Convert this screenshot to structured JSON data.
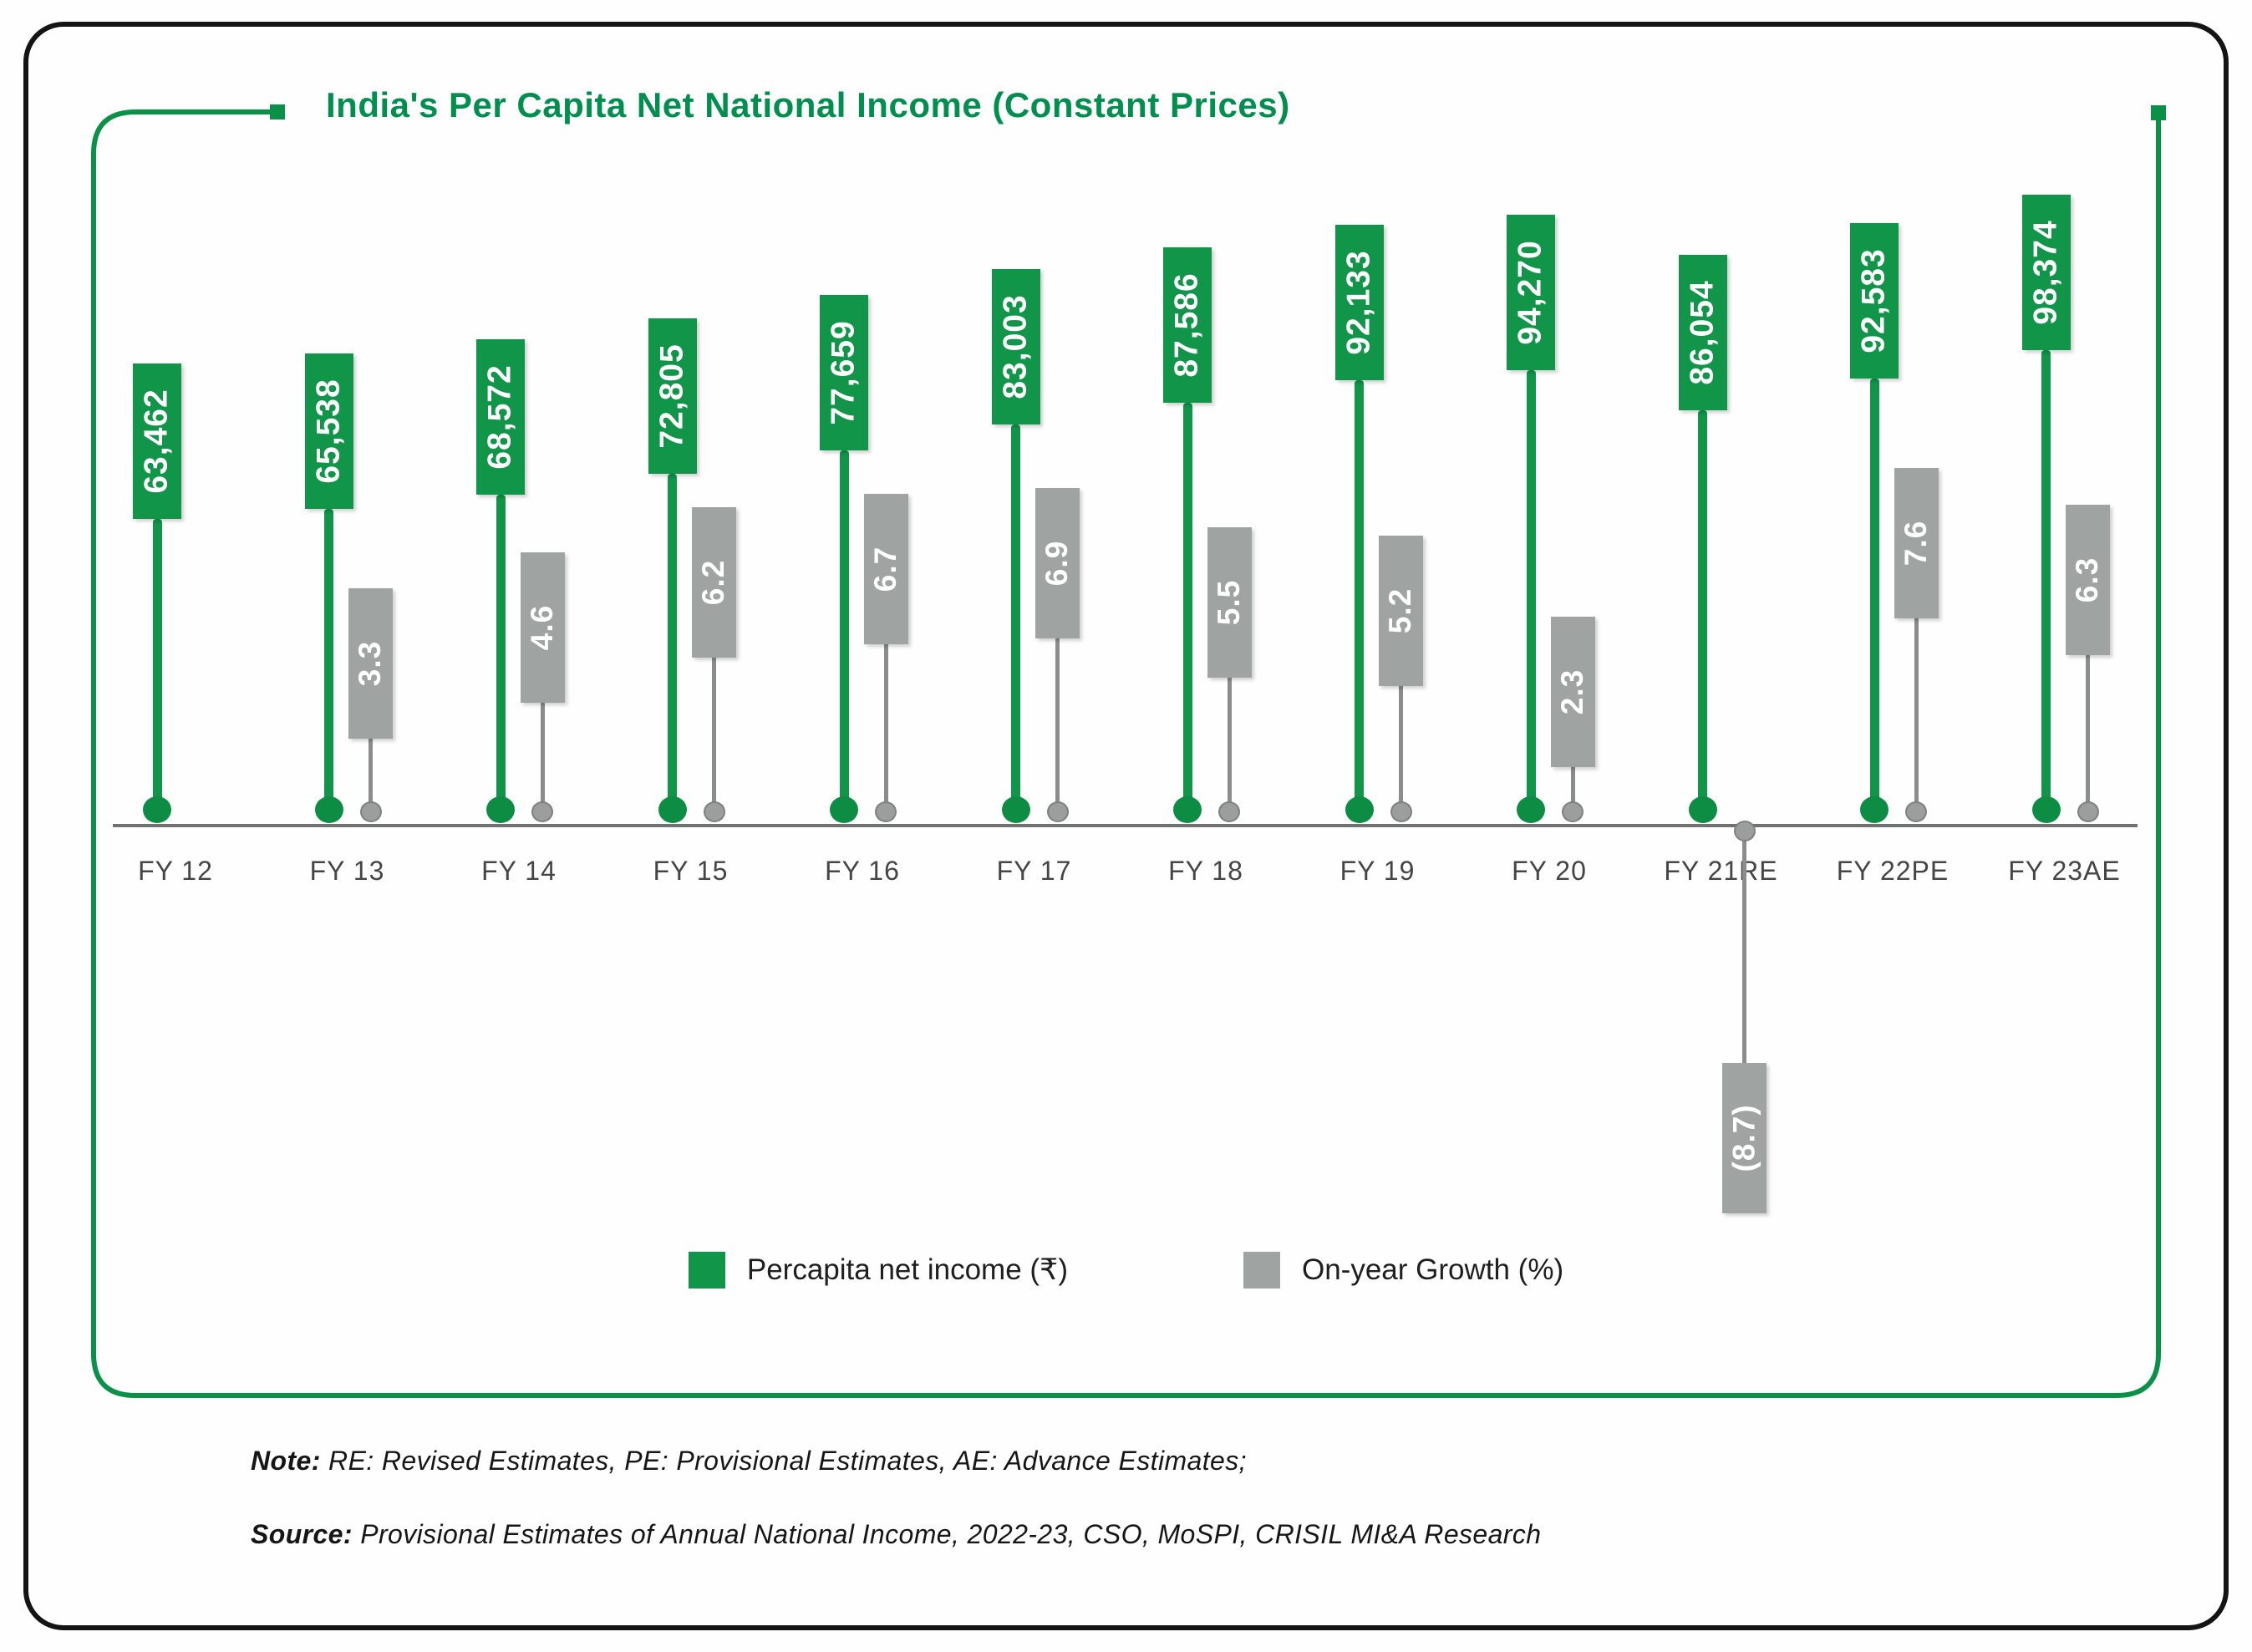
{
  "title": "India's Per Capita Net National Income (Constant Prices)",
  "chart_data": {
    "type": "bar",
    "title": "India's Per Capita Net National Income (Constant Prices)",
    "categories": [
      "FY 12",
      "FY 13",
      "FY 14",
      "FY 15",
      "FY 16",
      "FY 17",
      "FY 18",
      "FY 19",
      "FY 20",
      "FY 21RE",
      "FY 22PE",
      "FY 23AE"
    ],
    "series": [
      {
        "name": "Percapita net income (₹)",
        "values": [
          63462,
          65538,
          68572,
          72805,
          77659,
          83003,
          87586,
          92133,
          94270,
          86054,
          92583,
          98374
        ],
        "labels": [
          "63,462",
          "65,538",
          "68,572",
          "72,805",
          "77,659",
          "83,003",
          "87,586",
          "92,133",
          "94,270",
          "86,054",
          "92,583",
          "98,374"
        ],
        "color": "#109549"
      },
      {
        "name": "On-year Growth (%)",
        "values": [
          null,
          3.3,
          4.6,
          6.2,
          6.7,
          6.9,
          5.5,
          5.2,
          2.3,
          -8.7,
          7.6,
          6.3
        ],
        "labels": [
          "",
          "3.3",
          "4.6",
          "6.2",
          "6.7",
          "6.9",
          "5.5",
          "5.2",
          "2.3",
          "(8.7)",
          "7.6",
          "6.3"
        ],
        "color": "#9fa3a2"
      }
    ],
    "legend_position": "bottom-center",
    "axis": {
      "baseline_shown": true,
      "gridlines": false,
      "value_axis_shown": false
    }
  },
  "legend": {
    "items": [
      {
        "label": "Percapita net income (₹)",
        "color": "#109549"
      },
      {
        "label": "On-year Growth (%)",
        "color": "#9fa3a2"
      }
    ]
  },
  "footer": {
    "note_label": "Note:",
    "note_text": " RE: Revised Estimates, PE: Provisional Estimates, AE: Advance Estimates;",
    "source_label": "Source:",
    "source_text": " Provisional Estimates of Annual National Income, 2022-23, CSO, MoSPI, CRISIL MI&A Research"
  },
  "colors": {
    "title_green": "#008f4e",
    "bar_green": "#109549",
    "bar_gray": "#9fa3a2",
    "axis_gray": "#6f7271",
    "frame_green": "#0a9148",
    "border_black": "#141414"
  }
}
